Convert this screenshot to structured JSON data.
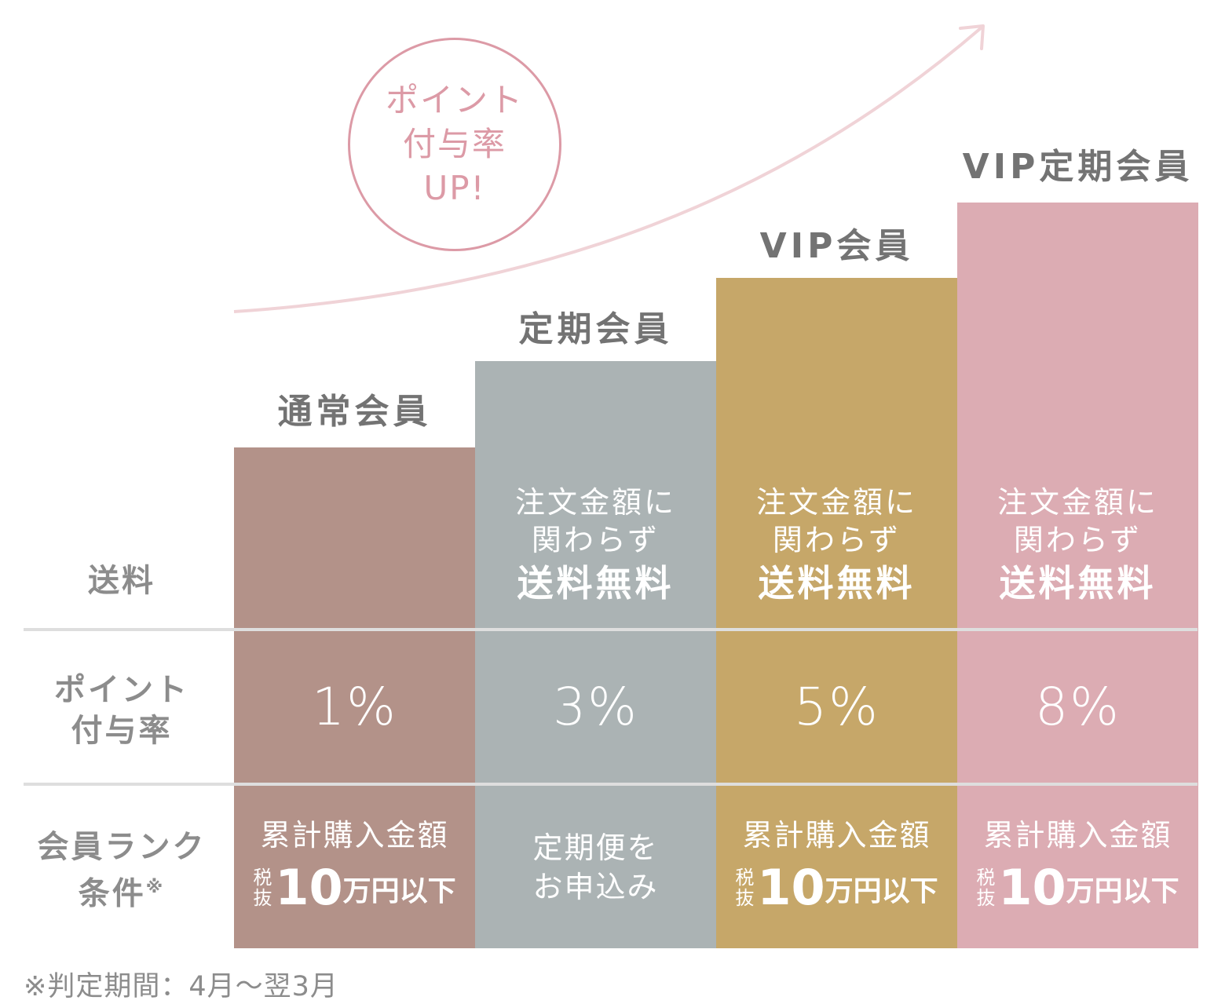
{
  "badge": {
    "line1": "ポイント",
    "line2": "付与率",
    "line3": "UP!"
  },
  "row_labels": {
    "shipping": "送料",
    "points_line1": "ポイント",
    "points_line2": "付与率",
    "condition_line1": "会員ランク",
    "condition_line2": "条件",
    "condition_mark": "※"
  },
  "tiers": [
    {
      "name": "通常会員",
      "color": "#b39289",
      "shipping": {
        "line1": "",
        "line2": "",
        "strong": ""
      },
      "point_rate": "1%",
      "condition": {
        "line1": "累計購入金額",
        "tax_top": "税",
        "tax_bottom": "抜",
        "amount": "10",
        "unit": "万円以下",
        "line2": ""
      }
    },
    {
      "name": "定期会員",
      "color": "#abb3b4",
      "shipping": {
        "line1": "注文金額に",
        "line2": "関わらず",
        "strong": "送料無料"
      },
      "point_rate": "3%",
      "condition": {
        "line1": "定期便を",
        "line2": "お申込み"
      }
    },
    {
      "name": "VIP会員",
      "color": "#c6a769",
      "shipping": {
        "line1": "注文金額に",
        "line2": "関わらず",
        "strong": "送料無料"
      },
      "point_rate": "5%",
      "condition": {
        "line1": "累計購入金額",
        "tax_top": "税",
        "tax_bottom": "抜",
        "amount": "10",
        "unit": "万円以下",
        "line2": ""
      }
    },
    {
      "name": "VIP定期会員",
      "color": "#dcacb3",
      "shipping": {
        "line1": "注文金額に",
        "line2": "関わらず",
        "strong": "送料無料"
      },
      "point_rate": "8%",
      "condition": {
        "line1": "累計購入金額",
        "tax_top": "税",
        "tax_bottom": "抜",
        "amount": "10",
        "unit": "万円以下",
        "line2": ""
      }
    }
  ],
  "footnote": "※判定期間：4月〜翌3月",
  "colors": {
    "accent_pink": "#dc9aa6",
    "arrow": "#f0d3d7",
    "label_gray": "#8c8c8c",
    "title_gray": "#737373",
    "divider": "#dedede"
  }
}
